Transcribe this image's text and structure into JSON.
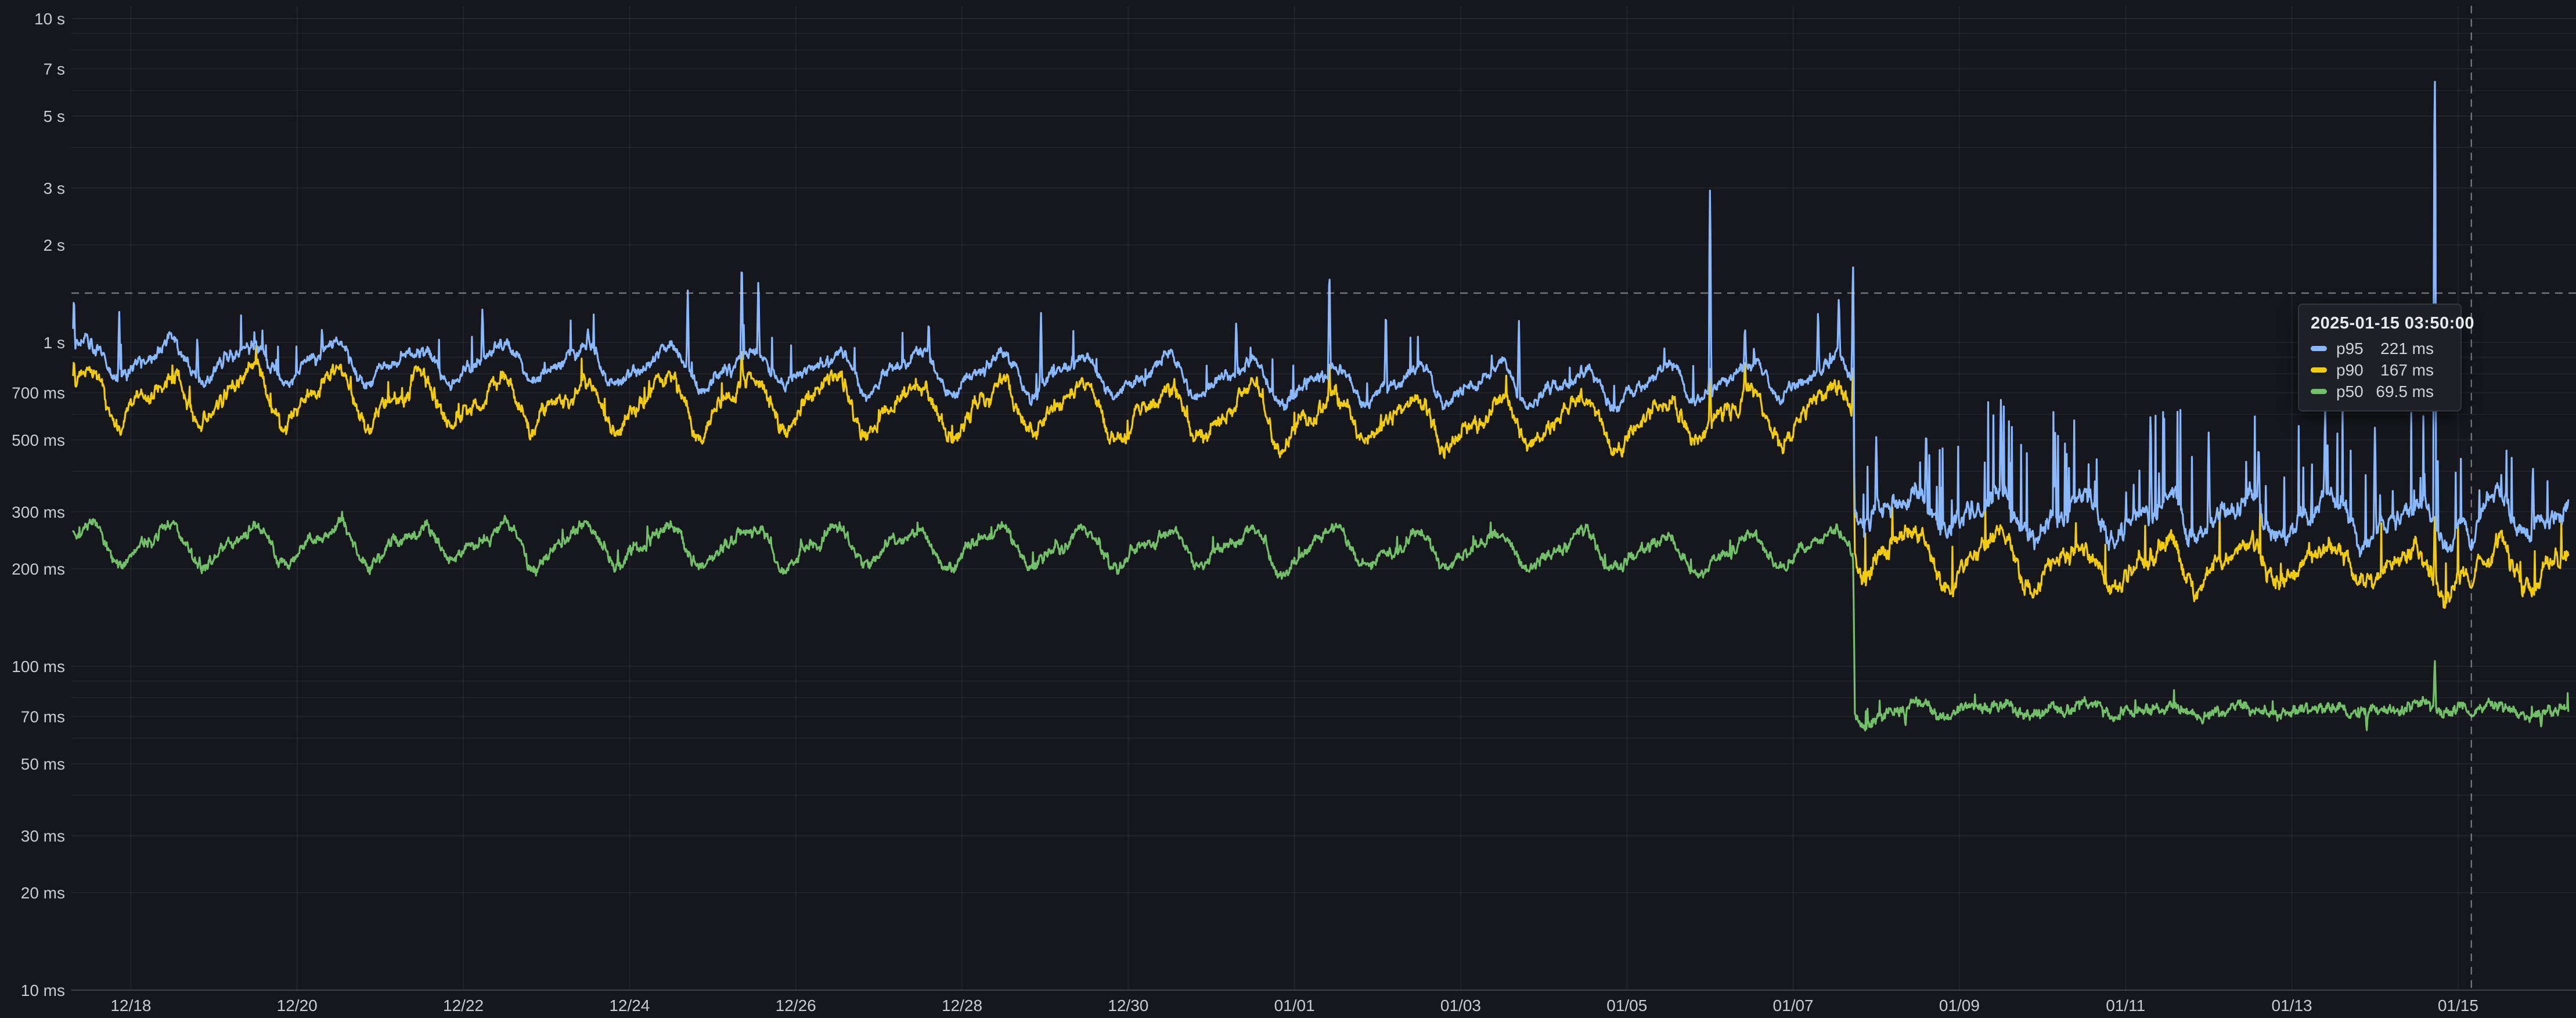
{
  "panel": {
    "background": "#15171c",
    "grid_color": "rgba(240,245,255,0.06)",
    "axis_line_color": "rgba(240,245,255,0.15)",
    "axis_text_color": "#c9cbd2",
    "crosshair_color": "rgba(200,204,212,0.55)"
  },
  "tooltip": {
    "timestamp": "2025-01-15 03:50:00",
    "rows": [
      {
        "label": "p95",
        "value": "221 ms",
        "color": "#8AB8FF"
      },
      {
        "label": "p90",
        "value": "167 ms",
        "color": "#F2CC0C"
      },
      {
        "label": "p50",
        "value": "69.5 ms",
        "color": "#73BF69"
      }
    ]
  },
  "chart_data": {
    "type": "line",
    "x_axis": {
      "unit": "date",
      "ticks": [
        {
          "t": 0,
          "label": "12/18"
        },
        {
          "t": 2,
          "label": "12/20"
        },
        {
          "t": 4,
          "label": "12/22"
        },
        {
          "t": 6,
          "label": "12/24"
        },
        {
          "t": 8,
          "label": "12/26"
        },
        {
          "t": 10,
          "label": "12/28"
        },
        {
          "t": 12,
          "label": "12/30"
        },
        {
          "t": 14,
          "label": "01/01"
        },
        {
          "t": 16,
          "label": "01/03"
        },
        {
          "t": 18,
          "label": "01/05"
        },
        {
          "t": 20,
          "label": "01/07"
        },
        {
          "t": 22,
          "label": "01/09"
        },
        {
          "t": 24,
          "label": "01/11"
        },
        {
          "t": 26,
          "label": "01/13"
        },
        {
          "t": 28,
          "label": "01/15"
        }
      ]
    },
    "y_axis": {
      "scale": "log10",
      "unit": "ms",
      "range_ms": [
        10,
        10000
      ],
      "ticks": [
        {
          "ms": 10000,
          "label": "10 s"
        },
        {
          "ms": 7000,
          "label": "7 s"
        },
        {
          "ms": 5000,
          "label": "5 s"
        },
        {
          "ms": 3000,
          "label": "3 s"
        },
        {
          "ms": 2000,
          "label": "2 s"
        },
        {
          "ms": 1000,
          "label": "1 s"
        },
        {
          "ms": 700,
          "label": "700 ms"
        },
        {
          "ms": 500,
          "label": "500 ms"
        },
        {
          "ms": 300,
          "label": "300 ms"
        },
        {
          "ms": 200,
          "label": "200 ms"
        },
        {
          "ms": 100,
          "label": "100 ms"
        },
        {
          "ms": 70,
          "label": "70 ms"
        },
        {
          "ms": 50,
          "label": "50 ms"
        },
        {
          "ms": 30,
          "label": "30 ms"
        },
        {
          "ms": 20,
          "label": "20 ms"
        },
        {
          "ms": 10,
          "label": "10 ms"
        }
      ],
      "minor_gridlines_ms": [
        9000,
        8000,
        6000,
        4000,
        900,
        800,
        600,
        400,
        90,
        80,
        60,
        40
      ]
    },
    "time_range_days": [
      -0.695,
      29.33
    ],
    "time_origin": "12/18 00:00",
    "sample_step_days": 0.0069444,
    "daily_peak_frac": 0.417,
    "daily_peak2_frac": 0.55,
    "step_change_days": 20.73,
    "series": [
      {
        "name": "p95",
        "color": "#8AB8FF",
        "seed": 11,
        "base_anchors": [
          [
            -0.695,
            900
          ],
          [
            1,
            880
          ],
          [
            4,
            860
          ],
          [
            8,
            830
          ],
          [
            12,
            790
          ],
          [
            15,
            750
          ],
          [
            17,
            735
          ],
          [
            19,
            750
          ],
          [
            20.72,
            800
          ],
          [
            20.74,
            320
          ],
          [
            21.5,
            300
          ],
          [
            23,
            298
          ],
          [
            25,
            293
          ],
          [
            26.5,
            290
          ],
          [
            28,
            282
          ],
          [
            29.33,
            300
          ]
        ],
        "segments": [
          {
            "from": -0.7,
            "to": 20.73,
            "amp1": 0.115,
            "amp2": 0.045,
            "smooth": 0.05,
            "jitter": 0.022,
            "spike_prob": 0.012,
            "spike_mult": [
              1.05,
              1.3
            ]
          },
          {
            "from": 20.73,
            "to": 29.34,
            "amp1": 0.13,
            "amp2": 0.05,
            "smooth": 0.09,
            "jitter": 0.035,
            "spike_prob": 0.05,
            "spike_mult": [
              1.15,
              2.0
            ]
          }
        ],
        "events": [
          [
            -0.685,
            1430
          ],
          [
            -0.14,
            1260
          ],
          [
            0.8,
            1060
          ],
          [
            2.3,
            1120
          ],
          [
            4.23,
            1300
          ],
          [
            5.5,
            1100
          ],
          [
            6.7,
            1480
          ],
          [
            7.35,
            1870
          ],
          [
            7.55,
            1620
          ],
          [
            9.6,
            1180
          ],
          [
            10.95,
            1260
          ],
          [
            13.3,
            1200
          ],
          [
            14.42,
            1750
          ],
          [
            15.1,
            1300
          ],
          [
            16.7,
            1190
          ],
          [
            19.0,
            3050
          ],
          [
            19.42,
            1150
          ],
          [
            20.3,
            1290
          ],
          [
            20.55,
            1420
          ],
          [
            20.72,
            1820
          ],
          [
            21.0,
            520
          ],
          [
            21.6,
            560
          ],
          [
            22.5,
            680
          ],
          [
            23.15,
            560
          ],
          [
            24.3,
            640
          ],
          [
            25.0,
            540
          ],
          [
            25.6,
            500
          ],
          [
            26.4,
            620
          ],
          [
            27.0,
            560
          ],
          [
            27.72,
            7050
          ],
          [
            28.9,
            430
          ]
        ]
      },
      {
        "name": "p90",
        "color": "#F2CC0C",
        "seed": 22,
        "base_anchors": [
          [
            -0.695,
            700
          ],
          [
            1,
            690
          ],
          [
            4,
            672
          ],
          [
            8,
            650
          ],
          [
            12,
            615
          ],
          [
            15,
            585
          ],
          [
            17,
            565
          ],
          [
            19,
            585
          ],
          [
            20.72,
            640
          ],
          [
            20.74,
            232
          ],
          [
            21.5,
            218
          ],
          [
            23,
            213
          ],
          [
            25,
            210
          ],
          [
            26.5,
            207
          ],
          [
            28,
            203
          ],
          [
            29.33,
            215
          ]
        ],
        "segments": [
          {
            "from": -0.7,
            "to": 20.73,
            "amp1": 0.155,
            "amp2": 0.06,
            "smooth": 0.07,
            "jitter": 0.03,
            "spike_prob": 0.008,
            "spike_mult": [
              1.04,
              1.18
            ]
          },
          {
            "from": 20.73,
            "to": 29.34,
            "amp1": 0.14,
            "amp2": 0.05,
            "smooth": 0.08,
            "jitter": 0.035,
            "spike_prob": 0.02,
            "spike_mult": [
              1.1,
              1.45
            ]
          }
        ],
        "events": [
          [
            -0.685,
            900
          ],
          [
            7.35,
            980
          ],
          [
            14.42,
            900
          ],
          [
            19.0,
            840
          ],
          [
            19.42,
            900
          ],
          [
            20.72,
            860
          ],
          [
            27.72,
            300
          ]
        ]
      },
      {
        "name": "p50",
        "color": "#73BF69",
        "seed": 33,
        "base_anchors": [
          [
            -0.695,
            242
          ],
          [
            4,
            240
          ],
          [
            8,
            237
          ],
          [
            12,
            233
          ],
          [
            16,
            228
          ],
          [
            19,
            226
          ],
          [
            20.72,
            232
          ],
          [
            20.74,
            71
          ],
          [
            22,
            73
          ],
          [
            24,
            73.5
          ],
          [
            26,
            73
          ],
          [
            28,
            74
          ],
          [
            29.33,
            71
          ]
        ],
        "segments": [
          {
            "from": -0.7,
            "to": 20.73,
            "amp1": 0.115,
            "amp2": 0.04,
            "smooth": 0.05,
            "jitter": 0.022,
            "spike_prob": 0.006,
            "spike_mult": [
              1.03,
              1.12
            ]
          },
          {
            "from": 20.73,
            "to": 29.34,
            "amp1": 0.035,
            "amp2": 0.015,
            "smooth": 0.04,
            "jitter": 0.025,
            "spike_prob": 0.015,
            "spike_mult": [
              1.03,
              1.12
            ]
          }
        ],
        "events": [
          [
            21.35,
            64
          ],
          [
            26.9,
            62
          ],
          [
            27.72,
            107
          ],
          [
            29.0,
            65
          ]
        ]
      }
    ],
    "cursor": {
      "t_days": 28.1597,
      "line_value_ms": 1420,
      "values_ms": {
        "p95": 221,
        "p90": 167,
        "p50": 69.5
      }
    }
  }
}
